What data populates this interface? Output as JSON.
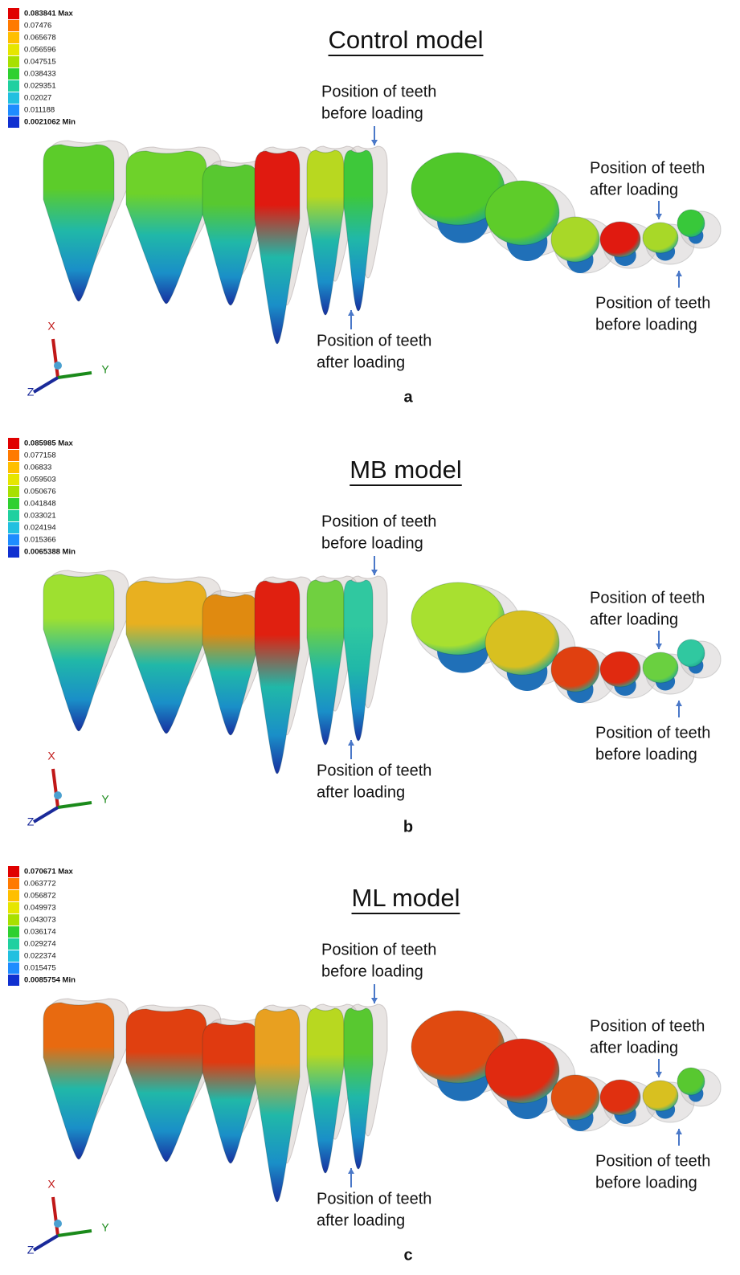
{
  "panels": [
    {
      "legend": [
        "0.083841 Max",
        "0.07476",
        "0.065678",
        "0.056596",
        "0.047515",
        "0.038433",
        "0.029351",
        "0.02027",
        "0.011188",
        "0.0021062 Min"
      ],
      "title": "Control model",
      "before_top": [
        "Position of teeth",
        "before loading"
      ],
      "after_right": [
        "Position of teeth",
        "after loading"
      ],
      "before_right": [
        "Position of teeth",
        "before loading"
      ],
      "after_bottom": [
        "Position of teeth",
        "after loading"
      ],
      "axes": [
        "X",
        "Y",
        "Z"
      ],
      "label": "a"
    },
    {
      "legend": [
        "0.085985 Max",
        "0.077158",
        "0.06833",
        "0.059503",
        "0.050676",
        "0.041848",
        "0.033021",
        "0.024194",
        "0.015366",
        "0.0065388 Min"
      ],
      "title": "MB model",
      "before_top": [
        "Position of teeth",
        "before loading"
      ],
      "after_right": [
        "Position of teeth",
        "after loading"
      ],
      "before_right": [
        "Position of teeth",
        "before loading"
      ],
      "after_bottom": [
        "Position of teeth",
        "after loading"
      ],
      "axes": [
        "X",
        "Y",
        "Z"
      ],
      "label": "b"
    },
    {
      "legend": [
        "0.070671 Max",
        "0.063772",
        "0.056872",
        "0.049973",
        "0.043073",
        "0.036174",
        "0.029274",
        "0.022374",
        "0.015475",
        "0.0085754 Min"
      ],
      "title": "ML model",
      "before_top": [
        "Position of teeth",
        "before loading"
      ],
      "after_right": [
        "Position of teeth",
        "after loading"
      ],
      "before_right": [
        "Position of teeth",
        "before loading"
      ],
      "after_bottom": [
        "Position of teeth",
        "after loading"
      ],
      "axes": [
        "X",
        "Y",
        "Z"
      ],
      "label": "c"
    }
  ]
}
